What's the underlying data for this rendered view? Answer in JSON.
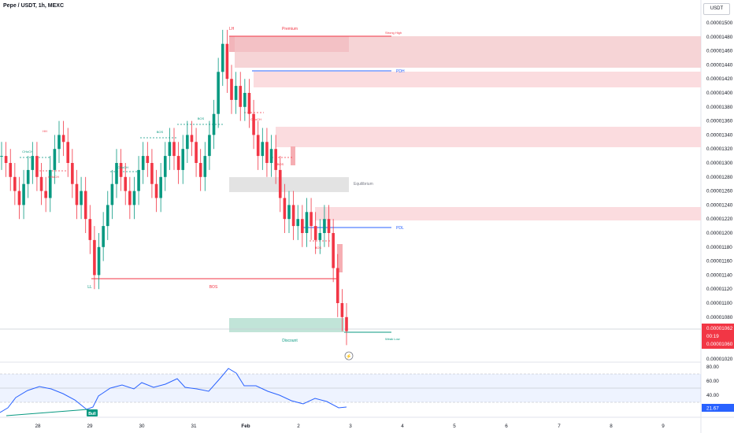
{
  "title": "Pepe / USDT, 1h, MEXC",
  "currency": "USDT",
  "colors": {
    "up": "#089981",
    "down": "#f23645",
    "line": "#2962ff",
    "price": "#f23645",
    "rsi": "#2962ff"
  },
  "price_axis": {
    "ticks": [
      "0.00001500",
      "0.00001480",
      "0.00001460",
      "0.00001440",
      "0.00001420",
      "0.00001400",
      "0.00001380",
      "0.00001360",
      "0.00001340",
      "0.00001320",
      "0.00001300",
      "0.00001280",
      "0.00001260",
      "0.00001240",
      "0.00001220",
      "0.00001200",
      "0.00001180",
      "0.00001160",
      "0.00001140",
      "0.00001120",
      "0.00001100",
      "0.00001080",
      "0.00001060",
      "0.00001040",
      "0.00001020"
    ],
    "current_price": "0.00001062",
    "countdown": "00:19",
    "current_price_2": "0.00001060"
  },
  "rsi_axis": {
    "ticks": [
      "80.00",
      "60.00",
      "40.00"
    ],
    "current": "21.67",
    "bull_label": "Bull"
  },
  "time_axis": [
    "28",
    "29",
    "30",
    "31",
    "Feb",
    "2",
    "3",
    "4",
    "5",
    "6",
    "7",
    "8",
    "9"
  ],
  "labels": {
    "premium": "Premium",
    "discount": "Discount",
    "equilibrium": "Equilibrium",
    "pdh": "PDH",
    "pdl": "PDL",
    "strong_high": "Strong High",
    "weak_low": "Weak Low",
    "ll": "LL",
    "lh": "LH",
    "bos_main": "BOS",
    "hh": "HH",
    "bos": "BOS",
    "choch": "CHoCH"
  },
  "chart_data": {
    "type": "candlestick",
    "symbol": "PEPE/USDT",
    "interval": "1h",
    "exchange": "MEXC",
    "ylim": [
      1.02e-05,
      1.51e-05
    ],
    "x_ticks": [
      "28",
      "29",
      "30",
      "31",
      "Feb",
      "2",
      "3",
      "4",
      "5",
      "6",
      "7",
      "8",
      "9"
    ],
    "close_series": [
      1.31e-05,
      1.3e-05,
      1.28e-05,
      1.26e-05,
      1.24e-05,
      1.27e-05,
      1.29e-05,
      1.31e-05,
      1.28e-05,
      1.26e-05,
      1.25e-05,
      1.29e-05,
      1.32e-05,
      1.34e-05,
      1.33e-05,
      1.3e-05,
      1.27e-05,
      1.24e-05,
      1.26e-05,
      1.22e-05,
      1.19e-05,
      1.14e-05,
      1.18e-05,
      1.21e-05,
      1.24e-05,
      1.27e-05,
      1.3e-05,
      1.28e-05,
      1.26e-05,
      1.24e-05,
      1.26e-05,
      1.29e-05,
      1.31e-05,
      1.3e-05,
      1.27e-05,
      1.25e-05,
      1.28e-05,
      1.31e-05,
      1.33e-05,
      1.31e-05,
      1.29e-05,
      1.32e-05,
      1.34e-05,
      1.33e-05,
      1.3e-05,
      1.28e-05,
      1.31e-05,
      1.34e-05,
      1.37e-05,
      1.43e-05,
      1.47e-05,
      1.42e-05,
      1.39e-05,
      1.41e-05,
      1.38e-05,
      1.4e-05,
      1.37e-05,
      1.34e-05,
      1.31e-05,
      1.33e-05,
      1.3e-05,
      1.32e-05,
      1.29e-05,
      1.25e-05,
      1.22e-05,
      1.24e-05,
      1.21e-05,
      1.22e-05,
      1.2e-05,
      1.23e-05,
      1.21e-05,
      1.19e-05,
      1.2e-05,
      1.22e-05,
      1.2e-05,
      1.15e-05,
      1.1e-05,
      1.08e-05,
      1.06e-05
    ],
    "rsi": {
      "ylim": [
        20,
        80
      ],
      "levels": [
        70,
        30
      ],
      "current": 21.67
    }
  }
}
